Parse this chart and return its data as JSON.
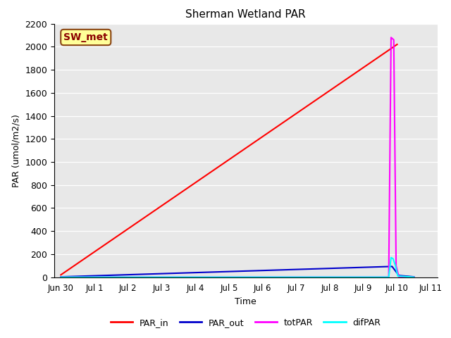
{
  "title": "Sherman Wetland PAR",
  "xlabel": "Time",
  "ylabel": "PAR (umol/m2/s)",
  "ylim": [
    0,
    2200
  ],
  "yticks": [
    0,
    200,
    400,
    600,
    800,
    1000,
    1200,
    1400,
    1600,
    1800,
    2000,
    2200
  ],
  "annotation_text": "SW_met",
  "annotation_bg": "#ffff99",
  "annotation_border": "#8b4513",
  "plot_bg": "#e8e8e8",
  "series": {
    "PAR_in": {
      "color": "#ff0000",
      "label": "PAR_in",
      "x": [
        0,
        10.0
      ],
      "y": [
        20,
        2020
      ]
    },
    "PAR_out": {
      "color": "#0000cc",
      "label": "PAR_out",
      "x": [
        0,
        9.85,
        10.05,
        10.5
      ],
      "y": [
        3,
        93,
        15,
        3
      ]
    },
    "totPAR": {
      "color": "#ff00ff",
      "label": "totPAR",
      "x": [
        0,
        9.75,
        9.82,
        9.9,
        9.97,
        10.05,
        10.5
      ],
      "y": [
        0,
        0,
        2080,
        2060,
        100,
        5,
        0
      ]
    },
    "difPAR": {
      "color": "#00ffff",
      "label": "difPAR",
      "x": [
        0,
        9.75,
        9.82,
        9.88,
        9.95,
        10.02,
        10.5
      ],
      "y": [
        0,
        0,
        170,
        160,
        100,
        10,
        0
      ]
    }
  },
  "x_tick_labels": [
    "Jun 30",
    "Jul 1",
    "Jul 2",
    "Jul 3",
    "Jul 4",
    "Jul 5",
    "Jul 6",
    "Jul 7",
    "Jul 8",
    "Jul 9",
    "Jul 10",
    "Jul 11"
  ],
  "x_tick_positions": [
    0,
    1,
    2,
    3,
    4,
    5,
    6,
    7,
    8,
    9,
    10,
    11
  ],
  "xlim": [
    -0.2,
    11.2
  ]
}
